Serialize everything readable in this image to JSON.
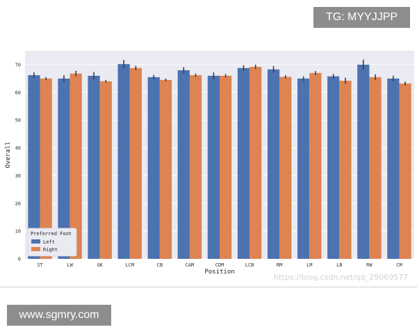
{
  "overlay": {
    "tg_label": "TG: MYYJJPP",
    "site_label": "www.sgmry.com",
    "watermark": "https://blog.csdn.net/qq_29069577"
  },
  "chart_data": {
    "type": "bar",
    "title": "",
    "xlabel": "Position",
    "ylabel": "Overall",
    "ylim": [
      0,
      75
    ],
    "yticks": [
      0,
      10,
      20,
      30,
      40,
      50,
      60,
      70
    ],
    "grid": true,
    "legend": {
      "title": "Preferred Foot",
      "placement": "bottom-left"
    },
    "categories": [
      "ST",
      "LW",
      "GK",
      "LCM",
      "CB",
      "CAM",
      "CDM",
      "LCB",
      "RM",
      "LM",
      "LB",
      "RW",
      "CM"
    ],
    "series": [
      {
        "name": "Left",
        "color": "#4c72b0",
        "values": [
          66.2,
          65.0,
          66.0,
          70.2,
          65.5,
          68.0,
          66.0,
          68.8,
          68.3,
          65.0,
          65.8,
          70.0,
          65.0
        ],
        "errors": [
          1.0,
          1.2,
          1.3,
          1.5,
          0.8,
          1.1,
          1.2,
          1.0,
          1.2,
          0.8,
          0.8,
          1.8,
          1.0
        ]
      },
      {
        "name": "Right",
        "color": "#dd8452",
        "values": [
          65.0,
          66.8,
          64.0,
          68.8,
          64.5,
          66.2,
          66.0,
          69.2,
          65.6,
          67.0,
          64.2,
          65.5,
          63.2
        ],
        "errors": [
          0.5,
          1.0,
          0.5,
          0.8,
          0.5,
          0.6,
          0.6,
          0.8,
          0.6,
          0.7,
          1.1,
          1.0,
          0.7
        ]
      }
    ]
  }
}
